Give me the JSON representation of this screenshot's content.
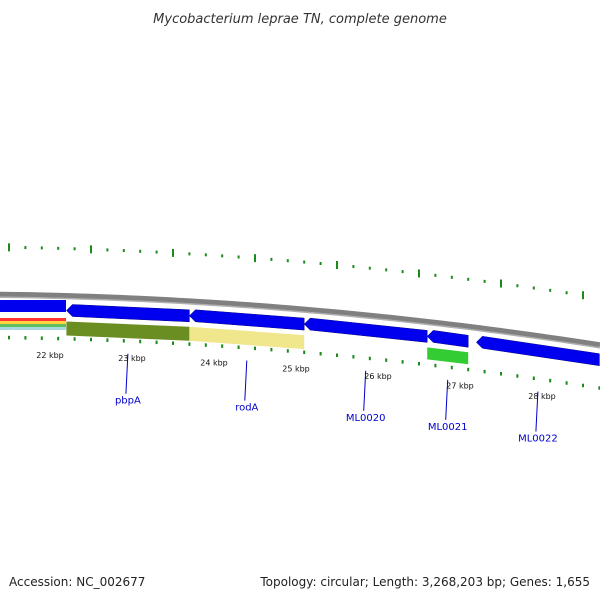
{
  "title": "Mycobacterium leprae TN, complete genome",
  "footer": {
    "accession": "Accession: NC_002677",
    "summary": "Topology: circular; Length: 3,268,203 bp; Genes: 1,655"
  },
  "colors": {
    "gene_blue": "#0000ee",
    "gene_label": "#0000cc",
    "tick_green": "#1a8a1a",
    "backbone": "#808080",
    "pbpA_feature": "#6b8e23",
    "rodA_feature": "#f0e68c",
    "ML0021_feature": "#33cc33"
  },
  "scale": {
    "unit": "kbp",
    "labeled_ticks": [
      {
        "kbp": 22,
        "label": "22 kbp"
      },
      {
        "kbp": 23,
        "label": "23 kbp"
      },
      {
        "kbp": 24,
        "label": "24 kbp"
      },
      {
        "kbp": 25,
        "label": "25 kbp"
      },
      {
        "kbp": 26,
        "label": "26 kbp"
      },
      {
        "kbp": 27,
        "label": "27 kbp"
      },
      {
        "kbp": 28,
        "label": "28 kbp"
      }
    ]
  },
  "genes": [
    {
      "name": "pbpA",
      "start_kbp": 22.2,
      "end_kbp": 23.7,
      "strand": "-",
      "label": "pbpA"
    },
    {
      "name": "rodA",
      "start_kbp": 23.7,
      "end_kbp": 25.1,
      "strand": "-",
      "label": "rodA"
    },
    {
      "name": "ML0020",
      "start_kbp": 25.1,
      "end_kbp": 26.6,
      "strand": "-",
      "label": "ML0020"
    },
    {
      "name": "ML0021",
      "start_kbp": 26.6,
      "end_kbp": 27.1,
      "strand": "-",
      "label": "ML0021"
    },
    {
      "name": "ML0022",
      "start_kbp": 27.2,
      "end_kbp": 28.7,
      "strand": "-",
      "label": "ML0022"
    }
  ]
}
